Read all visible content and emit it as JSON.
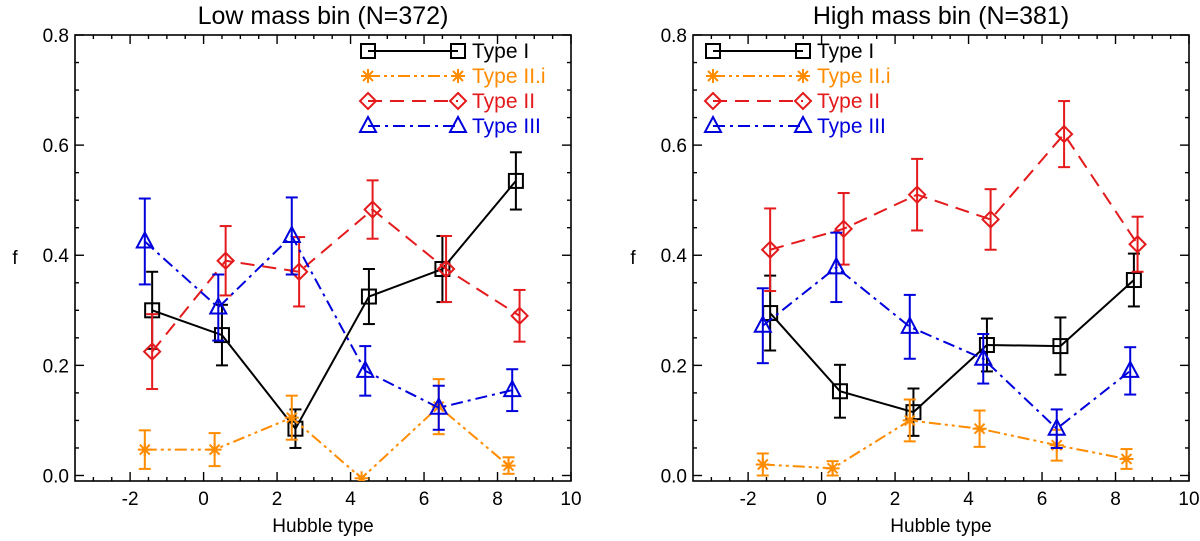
{
  "chart_data": [
    {
      "type": "line",
      "title": "Low mass bin (N=372)",
      "xlabel": "Hubble type",
      "ylabel": "f",
      "xlim": [
        -3.5,
        10
      ],
      "ylim": [
        -0.01,
        0.8
      ],
      "xticks": [
        -2,
        0,
        2,
        4,
        6,
        8,
        10
      ],
      "xtick_labels": [
        "-2",
        "0",
        "2",
        "4",
        "6",
        "8",
        "10"
      ],
      "yticks": [
        0.0,
        0.2,
        0.4,
        0.6,
        0.8
      ],
      "ytick_labels": [
        "0.0",
        "0.2",
        "0.4",
        "0.6",
        "0.8"
      ],
      "legend_position": "top-right",
      "series": [
        {
          "name": "Type I",
          "color": "#000000",
          "marker": "square",
          "dash": "solid",
          "x": [
            -1.4,
            0.5,
            2.5,
            4.5,
            6.5,
            8.5
          ],
          "y": [
            0.3,
            0.255,
            0.085,
            0.325,
            0.375,
            0.535
          ],
          "err": [
            0.07,
            0.055,
            0.035,
            0.05,
            0.06,
            0.052
          ]
        },
        {
          "name": "Type II.i",
          "color": "#ff8c00",
          "marker": "asterisk",
          "dash": "dash-dot-dot",
          "x": [
            -1.6,
            0.3,
            2.4,
            4.3,
            6.4,
            8.3
          ],
          "y": [
            0.047,
            0.047,
            0.105,
            -0.005,
            0.125,
            0.018
          ],
          "err": [
            0.035,
            0.03,
            0.04,
            0.0,
            0.05,
            0.015
          ]
        },
        {
          "name": "Type II",
          "color": "#e41a1c",
          "marker": "diamond",
          "dash": "dashed",
          "x": [
            -1.4,
            0.6,
            2.6,
            4.6,
            6.6,
            8.6
          ],
          "y": [
            0.225,
            0.39,
            0.37,
            0.483,
            0.375,
            0.29
          ],
          "err": [
            0.068,
            0.063,
            0.063,
            0.053,
            0.06,
            0.047
          ]
        },
        {
          "name": "Type III",
          "color": "#0000dd",
          "marker": "triangle",
          "dash": "dash-dot",
          "x": [
            -1.6,
            0.4,
            2.4,
            4.4,
            6.4,
            8.4
          ],
          "y": [
            0.425,
            0.305,
            0.435,
            0.19,
            0.123,
            0.155
          ],
          "err": [
            0.078,
            0.06,
            0.07,
            0.045,
            0.04,
            0.038
          ]
        }
      ]
    },
    {
      "type": "line",
      "title": "High mass bin (N=381)",
      "xlabel": "Hubble type",
      "ylabel": "f",
      "xlim": [
        -3.5,
        10
      ],
      "ylim": [
        -0.01,
        0.8
      ],
      "xticks": [
        -2,
        0,
        2,
        4,
        6,
        8,
        10
      ],
      "xtick_labels": [
        "-2",
        "0",
        "2",
        "4",
        "6",
        "8",
        "10"
      ],
      "yticks": [
        0.0,
        0.2,
        0.4,
        0.6,
        0.8
      ],
      "ytick_labels": [
        "0.0",
        "0.2",
        "0.4",
        "0.6",
        "0.8"
      ],
      "legend_position": "top-left",
      "series": [
        {
          "name": "Type I",
          "color": "#000000",
          "marker": "square",
          "dash": "solid",
          "x": [
            -1.4,
            0.5,
            2.5,
            4.5,
            6.5,
            8.5
          ],
          "y": [
            0.295,
            0.153,
            0.115,
            0.237,
            0.235,
            0.355
          ],
          "err": [
            0.068,
            0.048,
            0.043,
            0.048,
            0.052,
            0.048
          ]
        },
        {
          "name": "Type II.i",
          "color": "#ff8c00",
          "marker": "asterisk",
          "dash": "dash-dot-dot",
          "x": [
            -1.6,
            0.3,
            2.4,
            4.3,
            6.4,
            8.3
          ],
          "y": [
            0.02,
            0.013,
            0.1,
            0.085,
            0.055,
            0.03
          ],
          "err": [
            0.02,
            0.013,
            0.038,
            0.033,
            0.028,
            0.018
          ]
        },
        {
          "name": "Type II",
          "color": "#e41a1c",
          "marker": "diamond",
          "dash": "dashed",
          "x": [
            -1.4,
            0.6,
            2.6,
            4.6,
            6.6,
            8.6
          ],
          "y": [
            0.41,
            0.448,
            0.51,
            0.465,
            0.62,
            0.42
          ],
          "err": [
            0.075,
            0.065,
            0.065,
            0.055,
            0.06,
            0.05
          ]
        },
        {
          "name": "Type III",
          "color": "#0000dd",
          "marker": "triangle",
          "dash": "dash-dot",
          "x": [
            -1.6,
            0.4,
            2.4,
            4.4,
            6.4,
            8.4
          ],
          "y": [
            0.272,
            0.378,
            0.27,
            0.212,
            0.085,
            0.19
          ],
          "err": [
            0.068,
            0.063,
            0.058,
            0.045,
            0.035,
            0.043
          ]
        }
      ]
    }
  ]
}
